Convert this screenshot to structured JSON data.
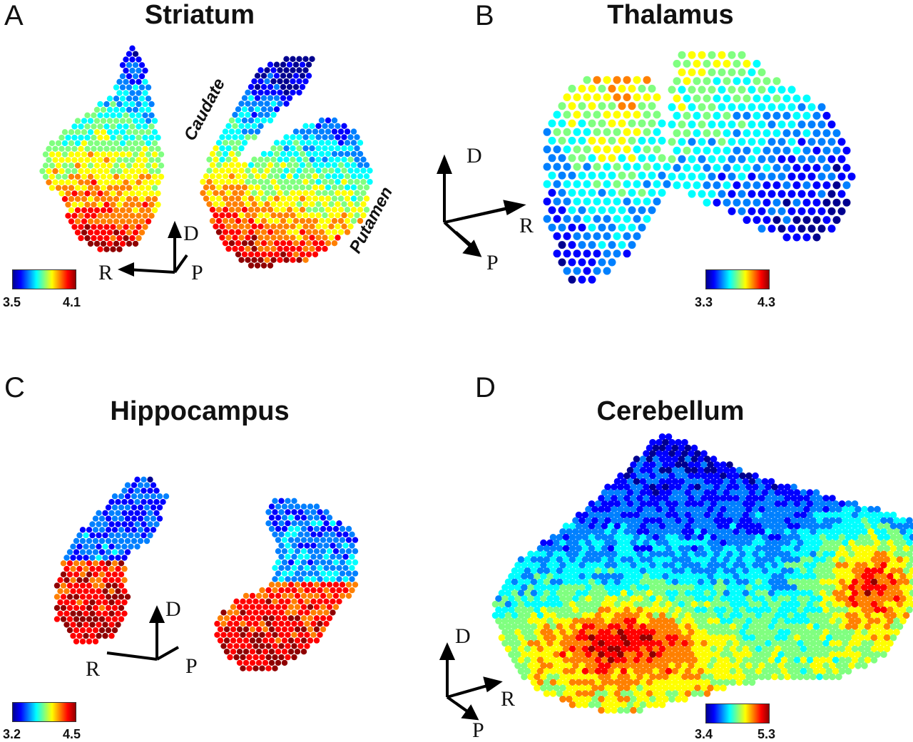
{
  "figure": {
    "panels": [
      {
        "id": "A",
        "letter": "A",
        "title": "Striatum",
        "annotations": [
          "Caudate",
          "Putamen"
        ],
        "colorbar": {
          "min": "3.5",
          "max": "4.1"
        },
        "axes": {
          "dorsal": "D",
          "right": "R",
          "posterior": "P"
        }
      },
      {
        "id": "B",
        "letter": "B",
        "title": "Thalamus",
        "colorbar": {
          "min": "3.3",
          "max": "4.3"
        },
        "axes": {
          "dorsal": "D",
          "right": "R",
          "posterior": "P"
        }
      },
      {
        "id": "C",
        "letter": "C",
        "title": "Hippocampus",
        "colorbar": {
          "min": "3.2",
          "max": "4.5"
        },
        "axes": {
          "dorsal": "D",
          "right": "R",
          "posterior": "P"
        }
      },
      {
        "id": "D",
        "letter": "D",
        "title": "Cerebellum",
        "colorbar": {
          "min": "3.4",
          "max": "5.3"
        },
        "axes": {
          "dorsal": "D",
          "right": "R",
          "posterior": "P"
        }
      }
    ],
    "colormap": [
      "#00008f",
      "#0000ff",
      "#0080ff",
      "#00ffff",
      "#80ff80",
      "#ffff00",
      "#ff8000",
      "#ff0000",
      "#8f0000"
    ]
  }
}
